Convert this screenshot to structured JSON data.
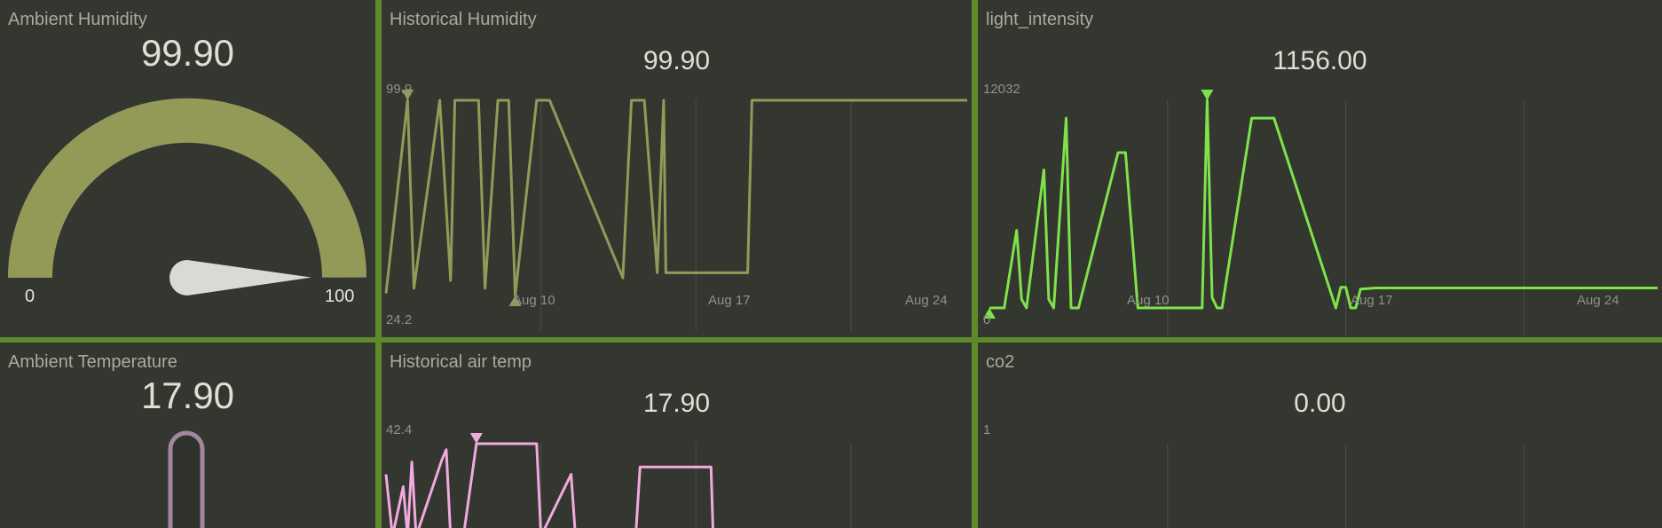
{
  "panels": {
    "humidity_gauge": {
      "title": "Ambient Humidity",
      "value": "99.90",
      "min": "0",
      "max": "100",
      "value_num": 99.9,
      "color": "#939a58"
    },
    "humidity_history": {
      "title": "Historical Humidity",
      "value": "99.90",
      "ymax": "99.9",
      "ymin": "24.2",
      "xticks": [
        "Aug 10",
        "Aug 17",
        "Aug 24"
      ],
      "color": "#939a58"
    },
    "light": {
      "title": "light_intensity",
      "value": "1156.00",
      "ymax": "12032",
      "ymin": "0",
      "xticks": [
        "Aug 10",
        "Aug 17",
        "Aug 24"
      ],
      "color": "#7ee34a"
    },
    "temp_gauge": {
      "title": "Ambient Temperature",
      "value": "17.90",
      "color": "#a3879f"
    },
    "air_temp": {
      "title": "Historical air temp",
      "value": "17.90",
      "ymax": "42.4",
      "color": "#f1a9de"
    },
    "co2": {
      "title": "co2",
      "value": "0.00",
      "ymax": "1"
    }
  },
  "chart_data": [
    {
      "type": "line",
      "title": "Historical Humidity",
      "x_unit": "days since Aug 3",
      "x": [
        0,
        1,
        1.3,
        2.5,
        3,
        3.2,
        4.3,
        4.6,
        5.2,
        5.7,
        6,
        7,
        7.6,
        11,
        11.4,
        12,
        12.6,
        12.9,
        13,
        13.6,
        16.8,
        17,
        27
      ],
      "y": [
        25,
        99.9,
        27,
        99.9,
        30,
        99.9,
        99.9,
        27,
        99.9,
        99.9,
        24.2,
        99.9,
        99.9,
        31,
        99.9,
        99.9,
        33,
        99.9,
        33,
        33,
        33,
        99.9,
        99.9
      ],
      "ylim": [
        24.2,
        99.9
      ],
      "xticks": [
        "Aug 10",
        "Aug 17",
        "Aug 24"
      ]
    },
    {
      "type": "line",
      "title": "light_intensity",
      "x_unit": "days since Aug 3",
      "x": [
        0,
        0.6,
        1.1,
        1.3,
        1.5,
        2.2,
        2.4,
        2.6,
        3.1,
        3.3,
        3.6,
        5.2,
        5.5,
        6.0,
        7.8,
        8.6,
        8.8,
        9.0,
        9.2,
        9.4,
        10.6,
        11.2,
        11.5,
        14.0,
        14.2,
        14.4,
        14.6,
        14.8,
        15.0,
        15.1,
        15.6,
        17.9,
        18.3,
        27.0
      ],
      "y": [
        0,
        0,
        4500,
        500,
        0,
        8000,
        500,
        0,
        11000,
        0,
        0,
        9000,
        9000,
        0,
        0,
        0,
        12032,
        600,
        0,
        0,
        11000,
        11000,
        11000,
        0,
        1200,
        1200,
        0,
        0,
        1100,
        1100,
        1156,
        1156,
        1156,
        1156
      ],
      "ylim": [
        0,
        12032
      ],
      "xticks": [
        "Aug 10",
        "Aug 17",
        "Aug 24"
      ]
    },
    {
      "type": "line",
      "title": "Historical air temp",
      "x_unit": "days since Aug 3",
      "x": [
        0,
        0.3,
        0.8,
        1.0,
        1.2,
        1.4,
        2.6,
        2.8,
        3.0,
        3.6,
        4.2,
        7.0,
        7.2,
        8.6,
        8.8,
        11.6,
        11.8,
        12.0,
        12.1,
        15.1,
        15.2
      ],
      "y": [
        30,
        5,
        25,
        5,
        35,
        5,
        36,
        40,
        5,
        5,
        42.4,
        42.4,
        5,
        30,
        5,
        5,
        33,
        33,
        33,
        33,
        5
      ],
      "ylim": [
        0,
        42.4
      ]
    }
  ]
}
